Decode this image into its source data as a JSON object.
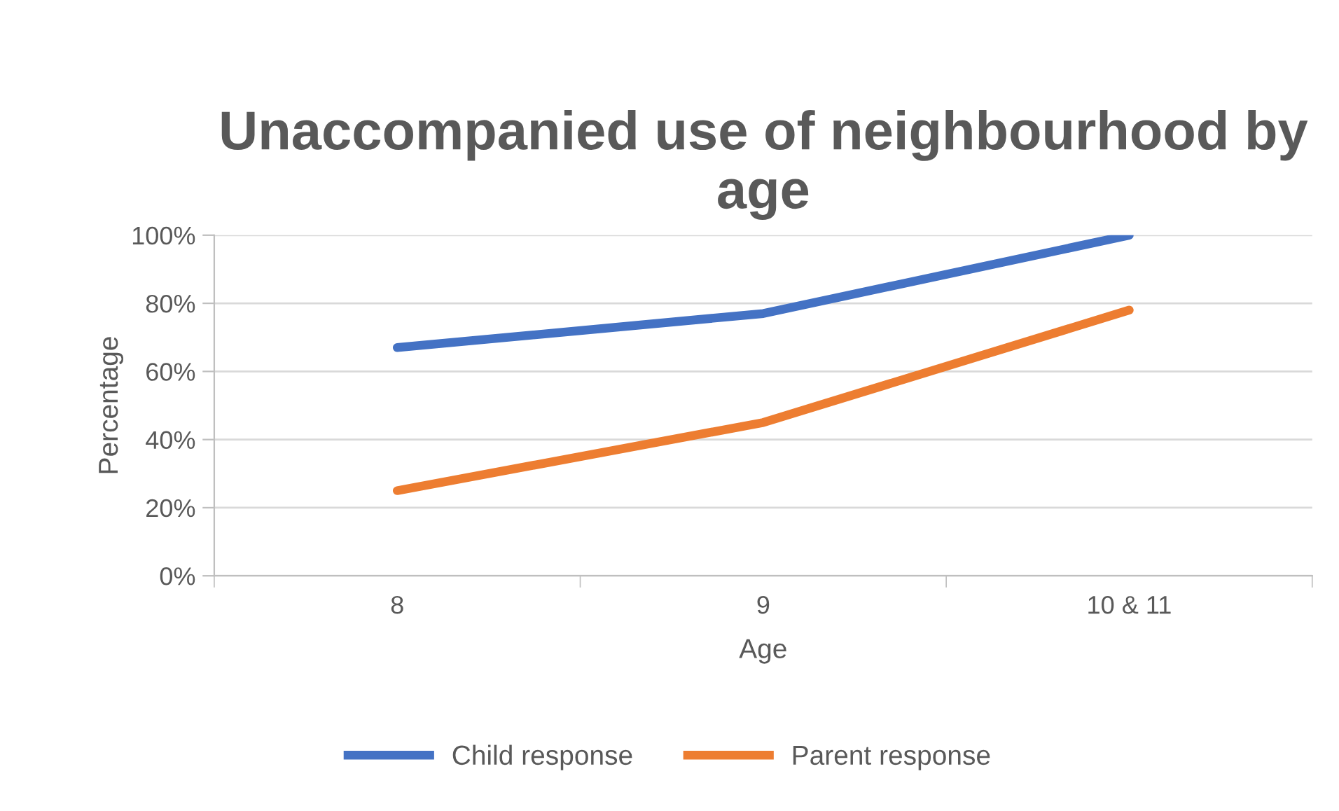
{
  "chart_data": {
    "type": "line",
    "title": "Unaccompanied use of neighbourhood by age",
    "xlabel": "Age",
    "ylabel": "Percentage",
    "categories": [
      "8",
      "9",
      "10 & 11"
    ],
    "series": [
      {
        "name": "Child response",
        "color": "#4472c4",
        "values": [
          67,
          77,
          100
        ]
      },
      {
        "name": "Parent response",
        "color": "#ed7d31",
        "values": [
          25,
          45,
          78
        ]
      }
    ],
    "ylim": [
      0,
      100
    ],
    "yticks": [
      {
        "value": 0,
        "label": "0%"
      },
      {
        "value": 20,
        "label": "20%"
      },
      {
        "value": 40,
        "label": "40%"
      },
      {
        "value": 60,
        "label": "60%"
      },
      {
        "value": 80,
        "label": "80%"
      },
      {
        "value": 100,
        "label": "100%"
      }
    ],
    "grid": "y",
    "legend": "bottom",
    "marker": "none",
    "line_style": "solid"
  }
}
